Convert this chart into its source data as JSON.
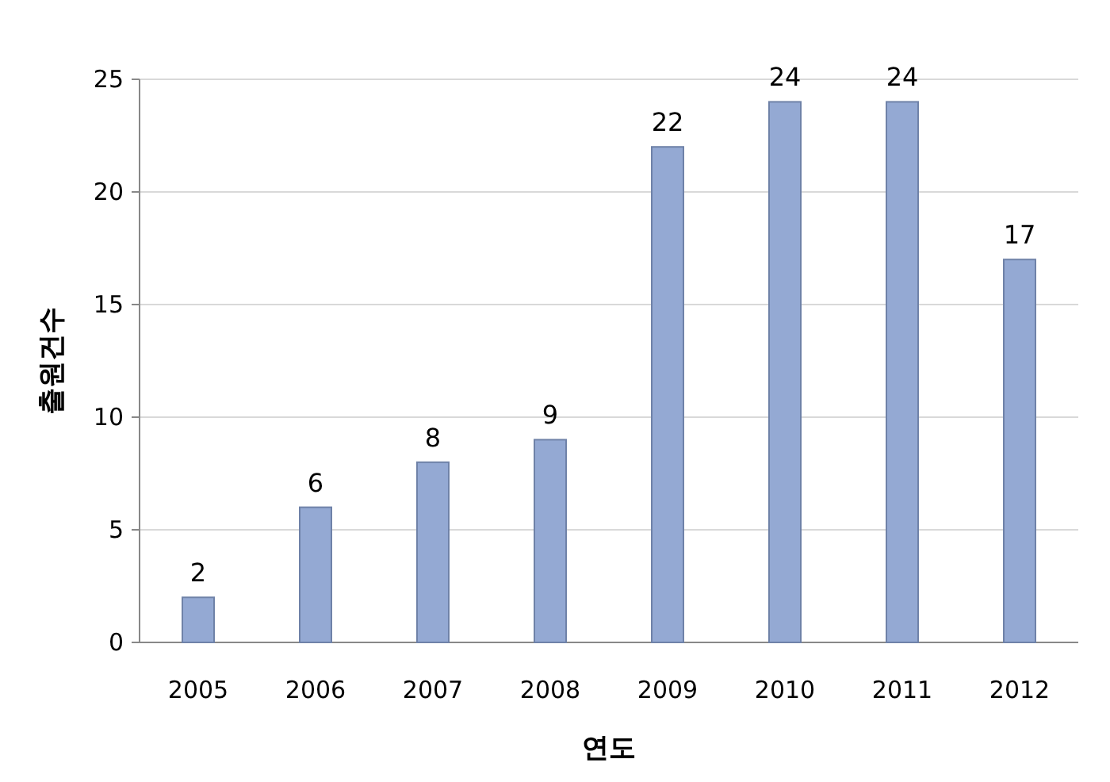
{
  "chart_data": {
    "type": "bar",
    "xlabel": "연도",
    "ylabel": "출원건수",
    "categories": [
      "2005",
      "2006",
      "2007",
      "2008",
      "2009",
      "2010",
      "2011",
      "2012"
    ],
    "values": [
      2,
      6,
      8,
      9,
      22,
      24,
      24,
      17
    ],
    "color": "#94a9d3",
    "ylim": [
      0,
      25
    ],
    "yticks": [
      0,
      5,
      10,
      15,
      20,
      25
    ],
    "grid": "y",
    "data_labels": true
  }
}
